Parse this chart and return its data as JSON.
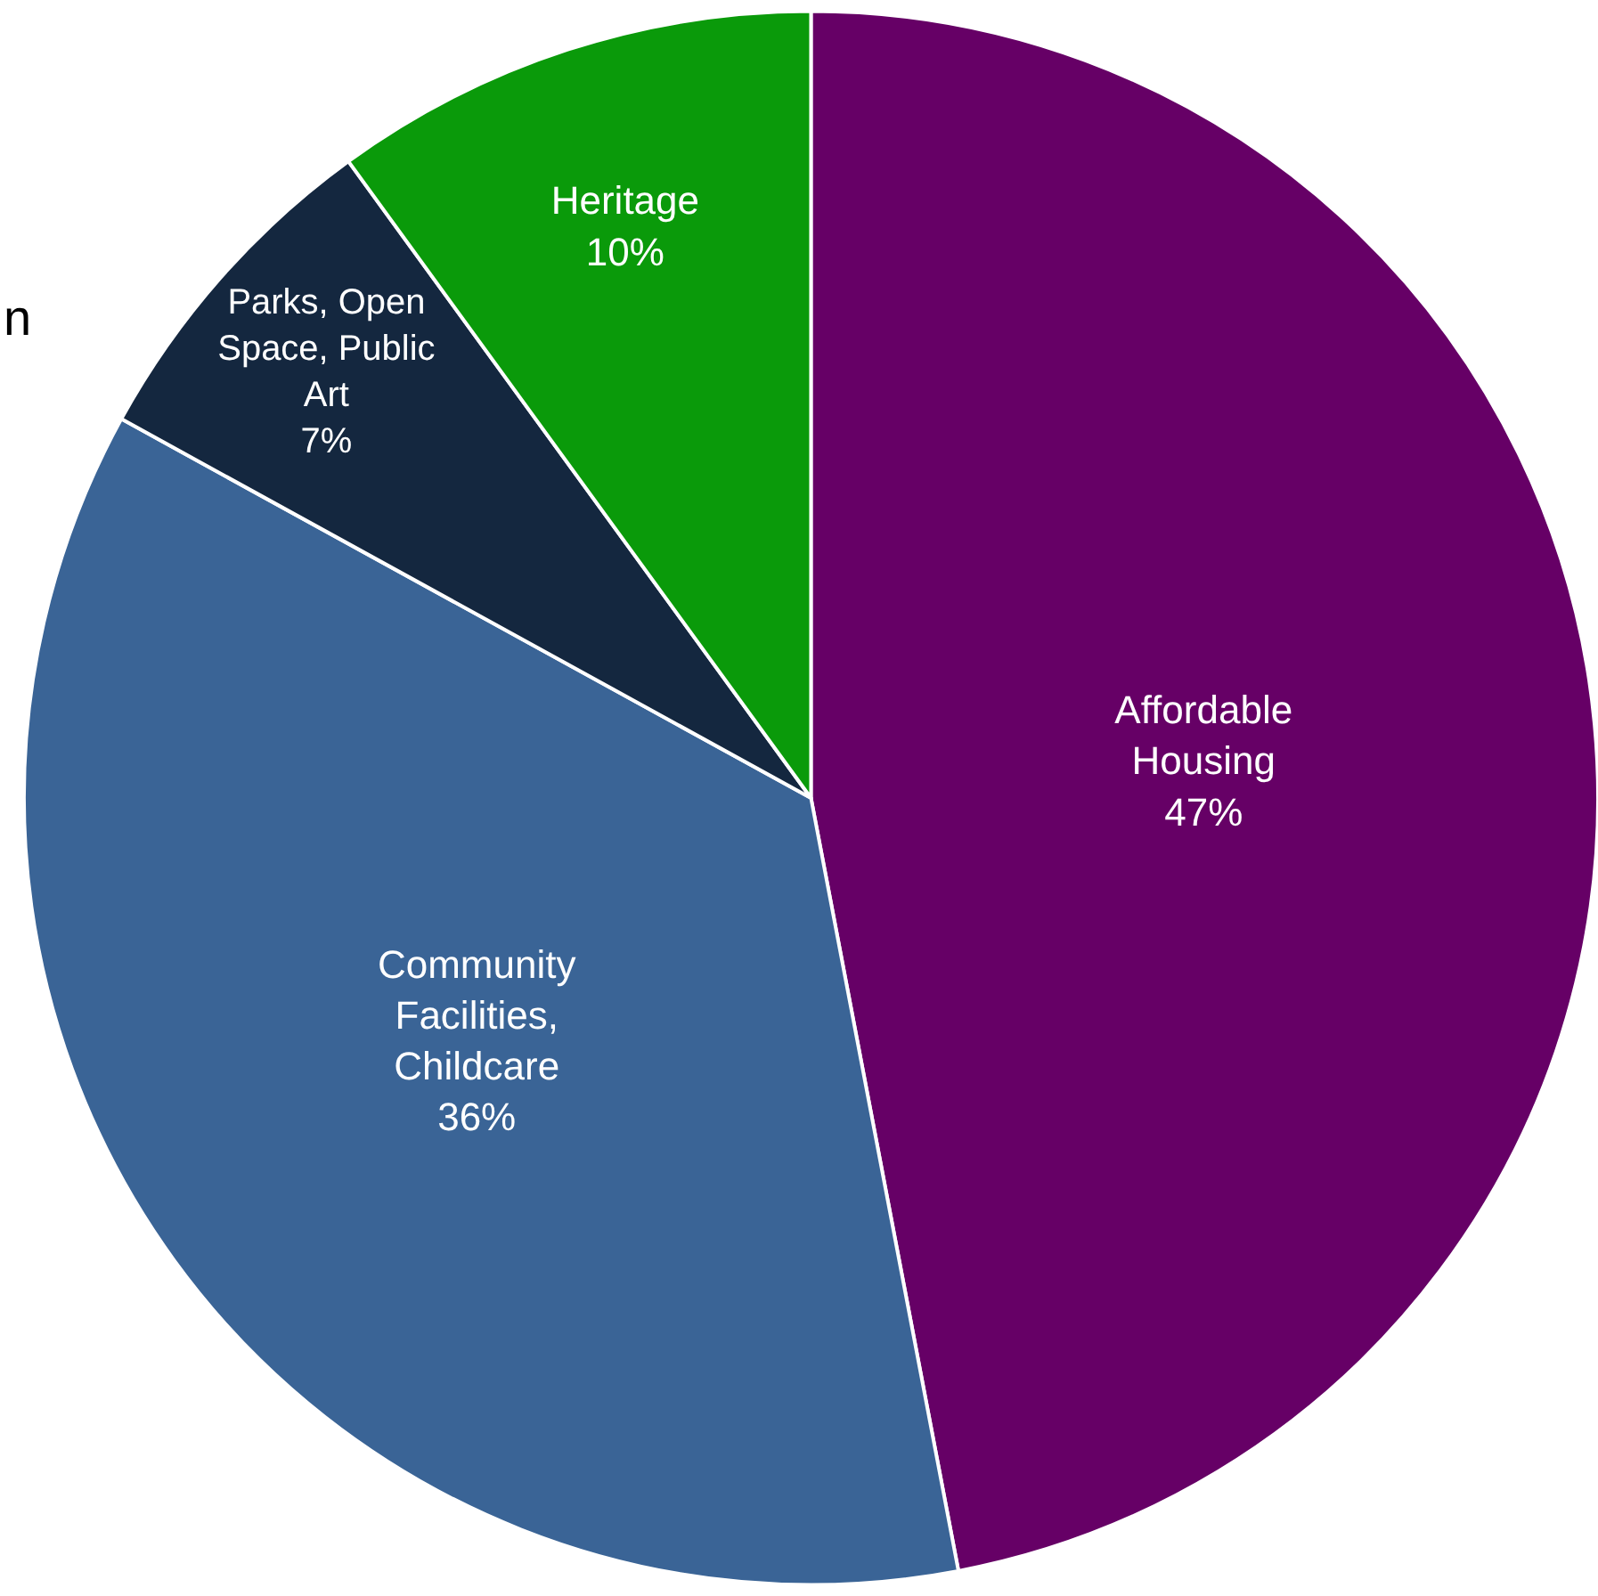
{
  "chart_data": {
    "type": "pie",
    "categories": [
      "Affordable Housing",
      "Community Facilities, Childcare",
      "Parks, Open Space, Public Art",
      "Heritage"
    ],
    "values": [
      47,
      36,
      7,
      10
    ],
    "colors": [
      "#660066",
      "#3a6496",
      "#14273f",
      "#0a9a0a"
    ],
    "value_labels": [
      "47%",
      "36%",
      "7%",
      "10%"
    ],
    "annotations": [
      "n"
    ],
    "legend": false
  }
}
